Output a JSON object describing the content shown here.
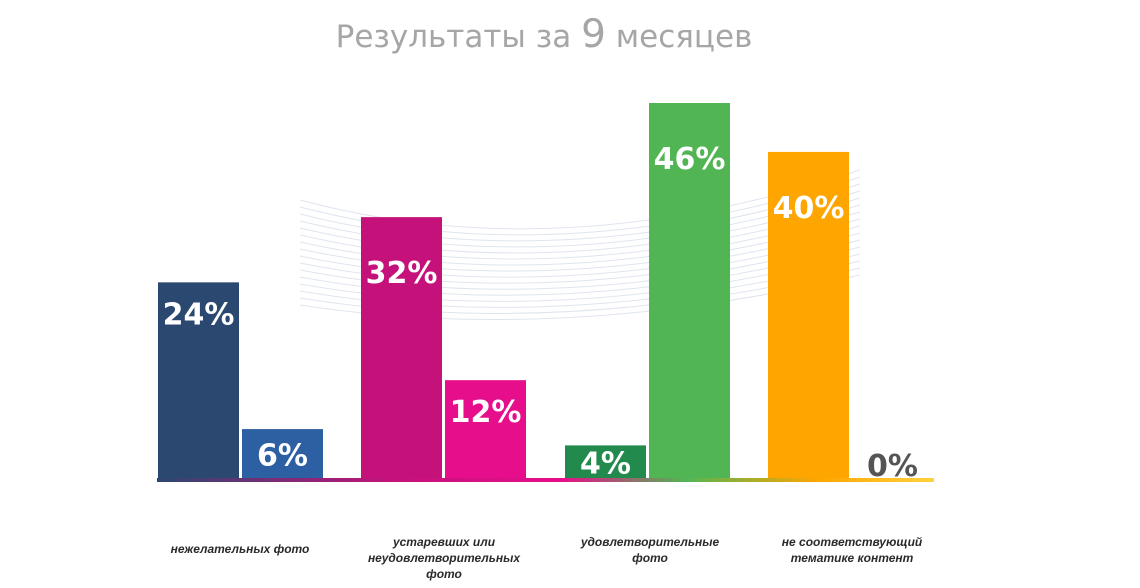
{
  "title": {
    "prefix": "Результаты за ",
    "number": "9",
    "suffix": " месяцев"
  },
  "chart_data": {
    "type": "bar",
    "title": "Результаты за 9 месяцев",
    "xlabel": "",
    "ylabel": "",
    "ylim": [
      0,
      46
    ],
    "grid": false,
    "categories": [
      "нежелательных фото",
      "устаревших или неудовлетворительных фото",
      "удовлетворительные фото",
      "не соответствующий тематике контент"
    ],
    "bars": [
      {
        "group": 0,
        "value": 24,
        "label": "24%",
        "color": "#2b4870"
      },
      {
        "group": 0,
        "value": 6,
        "label": "6%",
        "color": "#2d5fa3"
      },
      {
        "group": 1,
        "value": 32,
        "label": "32%",
        "color": "#c4127a"
      },
      {
        "group": 1,
        "value": 12,
        "label": "12%",
        "color": "#e60e8a"
      },
      {
        "group": 2,
        "value": 4,
        "label": "4%",
        "color": "#238a4e"
      },
      {
        "group": 2,
        "value": 46,
        "label": "46%",
        "color": "#52b554"
      },
      {
        "group": 3,
        "value": 40,
        "label": "40%",
        "color": "#ffa500"
      },
      {
        "group": 3,
        "value": 0,
        "label": "0%",
        "color": "#ffd23f"
      }
    ],
    "category_label_lines": [
      [
        "нежелательных фото"
      ],
      [
        "устаревших или",
        "неудовлетворительных",
        "фото"
      ],
      [
        "удовлетворительные",
        "фото"
      ],
      [
        "не соответствующий",
        "тематике контент"
      ]
    ]
  }
}
